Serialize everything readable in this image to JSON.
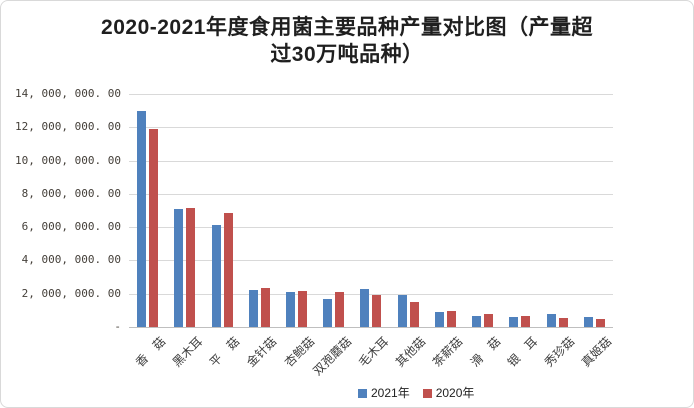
{
  "chart_data": {
    "type": "bar",
    "title": "2020-2021年度食用菌主要品种产量对比图（产量超过30万吨品种）",
    "title_line1": "2020-2021年度食用菌主要品种产量对比图（产量超",
    "title_line2": "过30万吨品种）",
    "categories": [
      "香　菇",
      "黑木耳",
      "平　菇",
      "金针菇",
      "杏鲍菇",
      "双孢蘑菇",
      "毛木耳",
      "其他菇",
      "茶薪菇",
      "滑　菇",
      "银　耳",
      "秀珍菇",
      "真姬菇"
    ],
    "series": [
      {
        "name": "2021年",
        "color": "#4F81BD",
        "values": [
          13000000,
          7100000,
          6100000,
          2200000,
          2130000,
          1680000,
          2290000,
          1930000,
          930000,
          660000,
          600000,
          760000,
          620000
        ]
      },
      {
        "name": "2020年",
        "color": "#C0504D",
        "values": [
          11900000,
          7150000,
          6850000,
          2330000,
          2160000,
          2120000,
          1940000,
          1520000,
          980000,
          790000,
          660000,
          560000,
          460000
        ]
      }
    ],
    "xlabel": "",
    "ylabel": "",
    "ylim": [
      0,
      14000000
    ],
    "ytick_step": 2000000,
    "ytick_labels": [
      "14, 000, 000. 00",
      "12, 000, 000. 00",
      "10, 000, 000. 00",
      "8, 000, 000. 00",
      "6, 000, 000. 00",
      "4, 000, 000. 00",
      "2, 000, 000. 00",
      "-"
    ],
    "grid": "horizontal",
    "legend_position": "bottom",
    "colors": {
      "grid": "#d9d9d9",
      "axis": "#bfbfbf",
      "tick_text": "#45403a"
    }
  }
}
